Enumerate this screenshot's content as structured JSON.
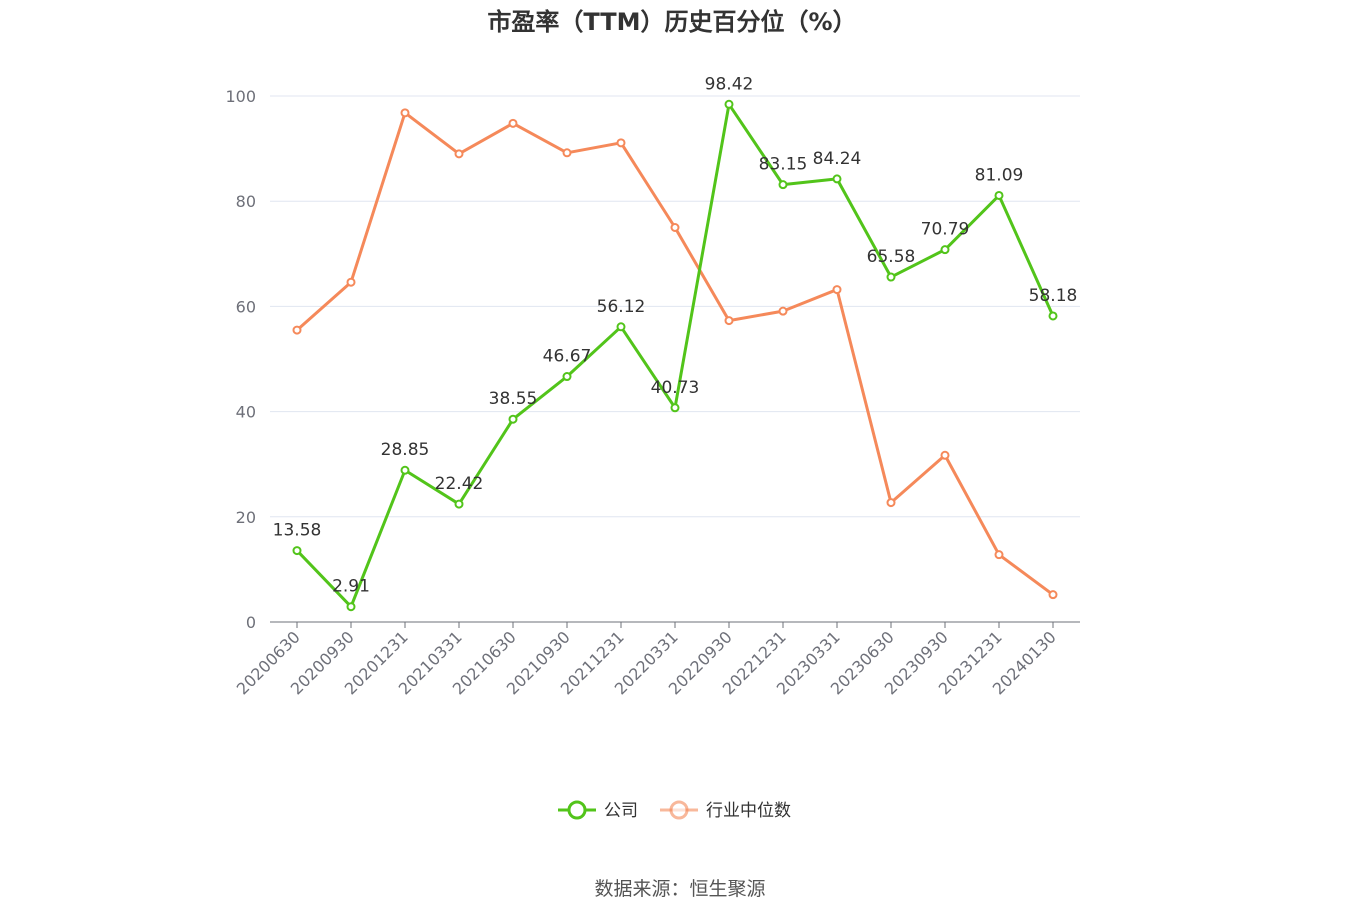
{
  "chart_data": {
    "type": "line",
    "title": "市盈率（TTM）历史百分位（%）",
    "categories": [
      "20200630",
      "20200930",
      "20201231",
      "20210331",
      "20210630",
      "20210930",
      "20211231",
      "20220331",
      "20220930",
      "20221231",
      "20230331",
      "20230630",
      "20230930",
      "20231231",
      "20240130"
    ],
    "ylim": [
      0,
      100
    ],
    "yticks": [
      0,
      20,
      40,
      60,
      80,
      100
    ],
    "grid": true,
    "legend_position": "bottom",
    "series": [
      {
        "name": "公司",
        "color": "#52c41a",
        "show_labels": true,
        "values": [
          13.58,
          2.91,
          28.85,
          22.42,
          38.55,
          46.67,
          56.12,
          40.73,
          98.42,
          83.15,
          84.24,
          65.58,
          70.79,
          81.09,
          58.18
        ]
      },
      {
        "name": "行业中位数",
        "color": "#f5895a",
        "show_labels": false,
        "values": [
          55.5,
          64.6,
          96.8,
          89.0,
          94.8,
          89.2,
          91.1,
          75.0,
          57.3,
          59.1,
          63.2,
          22.7,
          31.7,
          12.8,
          5.2
        ]
      }
    ]
  },
  "source": "数据来源：恒生聚源"
}
